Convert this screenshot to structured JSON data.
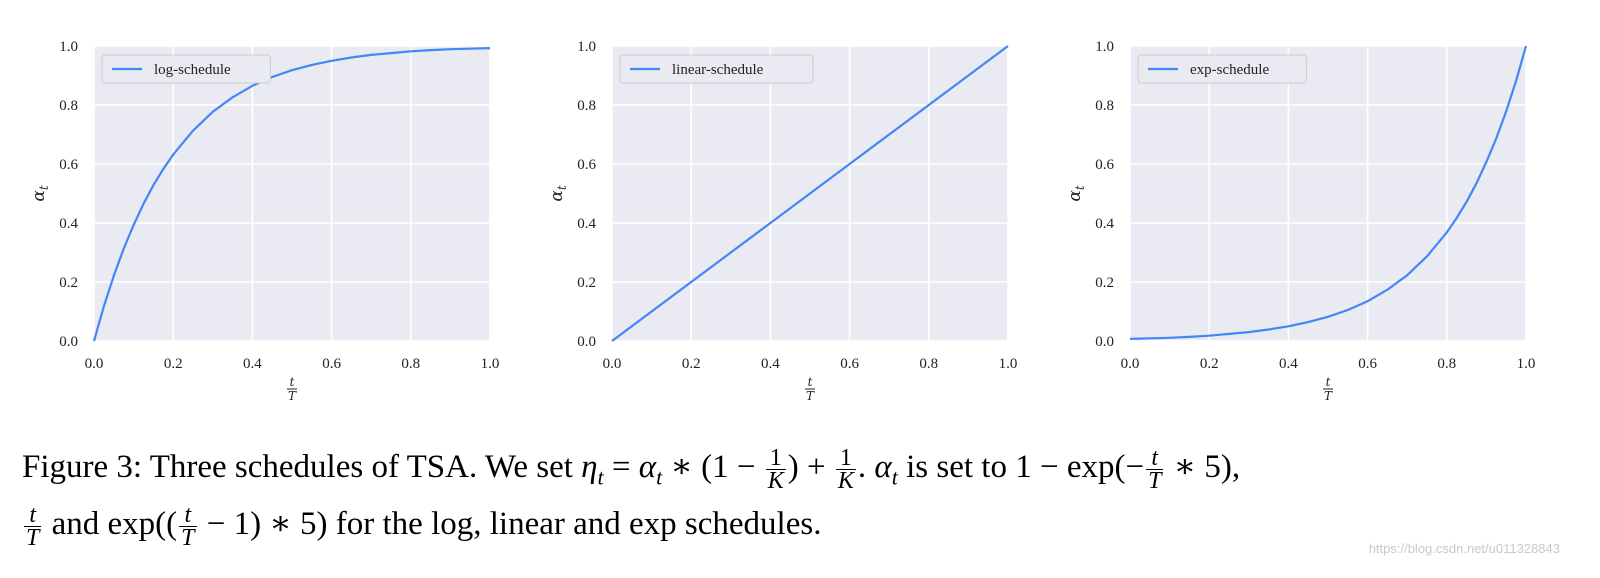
{
  "chart_data": [
    {
      "type": "line",
      "xlabel_num": "t",
      "xlabel_den": "T",
      "ylabel": "α",
      "ylabel_sub": "t",
      "xlim": [
        0,
        1
      ],
      "ylim": [
        0,
        1
      ],
      "xticks": [
        "0.0",
        "0.2",
        "0.4",
        "0.6",
        "0.8",
        "1.0"
      ],
      "yticks": [
        "0.0",
        "0.2",
        "0.4",
        "0.6",
        "0.8",
        "1.0"
      ],
      "grid": true,
      "legend_position": "top-left",
      "series": [
        {
          "name": "log-schedule",
          "color": "#4287f5",
          "x": [
            0,
            0.025,
            0.05,
            0.075,
            0.1,
            0.125,
            0.15,
            0.175,
            0.2,
            0.25,
            0.3,
            0.35,
            0.4,
            0.45,
            0.5,
            0.55,
            0.6,
            0.65,
            0.7,
            0.75,
            0.8,
            0.85,
            0.9,
            0.95,
            1.0
          ],
          "y": [
            0,
            0.118,
            0.221,
            0.313,
            0.393,
            0.465,
            0.528,
            0.583,
            0.632,
            0.713,
            0.777,
            0.826,
            0.865,
            0.895,
            0.918,
            0.936,
            0.95,
            0.961,
            0.97,
            0.976,
            0.982,
            0.986,
            0.989,
            0.991,
            0.993
          ]
        }
      ]
    },
    {
      "type": "line",
      "xlabel_num": "t",
      "xlabel_den": "T",
      "ylabel": "α",
      "ylabel_sub": "t",
      "xlim": [
        0,
        1
      ],
      "ylim": [
        0,
        1
      ],
      "xticks": [
        "0.0",
        "0.2",
        "0.4",
        "0.6",
        "0.8",
        "1.0"
      ],
      "yticks": [
        "0.0",
        "0.2",
        "0.4",
        "0.6",
        "0.8",
        "1.0"
      ],
      "grid": true,
      "legend_position": "top-left",
      "series": [
        {
          "name": "linear-schedule",
          "color": "#4287f5",
          "x": [
            0,
            0.2,
            0.4,
            0.6,
            0.8,
            1.0
          ],
          "y": [
            0,
            0.2,
            0.4,
            0.6,
            0.8,
            1.0
          ]
        }
      ]
    },
    {
      "type": "line",
      "xlabel_num": "t",
      "xlabel_den": "T",
      "ylabel": "α",
      "ylabel_sub": "t",
      "xlim": [
        0,
        1
      ],
      "ylim": [
        0,
        1
      ],
      "xticks": [
        "0.0",
        "0.2",
        "0.4",
        "0.6",
        "0.8",
        "1.0"
      ],
      "yticks": [
        "0.0",
        "0.2",
        "0.4",
        "0.6",
        "0.8",
        "1.0"
      ],
      "grid": true,
      "legend_position": "top-left",
      "series": [
        {
          "name": "exp-schedule",
          "color": "#4287f5",
          "x": [
            0,
            0.05,
            0.1,
            0.15,
            0.2,
            0.25,
            0.3,
            0.35,
            0.4,
            0.45,
            0.5,
            0.55,
            0.6,
            0.65,
            0.7,
            0.75,
            0.8,
            0.825,
            0.85,
            0.875,
            0.9,
            0.925,
            0.95,
            0.975,
            1.0
          ],
          "y": [
            0.007,
            0.009,
            0.011,
            0.014,
            0.018,
            0.024,
            0.03,
            0.039,
            0.05,
            0.064,
            0.082,
            0.105,
            0.135,
            0.174,
            0.223,
            0.287,
            0.368,
            0.417,
            0.472,
            0.535,
            0.607,
            0.687,
            0.779,
            0.882,
            1.0
          ]
        }
      ]
    }
  ],
  "caption": {
    "line1_a": "Figure 3: Three schedules of TSA. We set ",
    "eta": "η",
    "eta_sub": "t",
    "eq1": " = ",
    "alpha": "α",
    "alpha_sub": "t",
    "eq2": " ∗ (1 − ",
    "one": "1",
    "K": "K",
    "eq3": ") + ",
    "eq4": ". ",
    "line1_b": " is set to 1 − exp(−",
    "t": "t",
    "T": "T",
    "eq5": " ∗ 5),",
    "line2_a": " and exp((",
    "line2_b": " − 1) ∗ 5) for the log, linear and exp schedules."
  },
  "watermark": "https://blog.csdn.net/u011328843"
}
